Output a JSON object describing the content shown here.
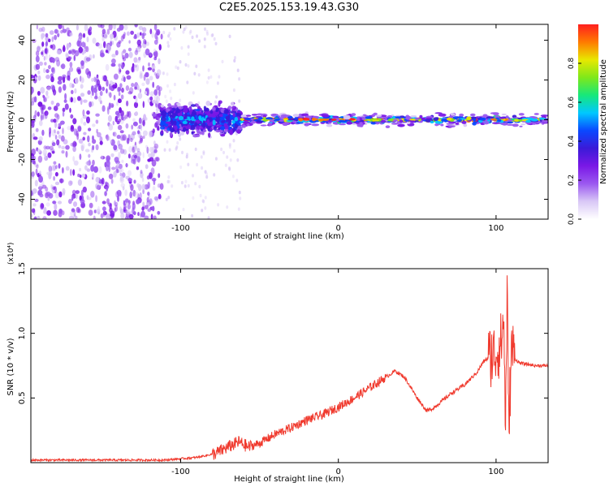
{
  "title": "C2E5.2025.153.19.43.G30",
  "colors": {
    "line": "#f03a2e",
    "colormap": [
      "#ffffff",
      "#d9c8f6",
      "#9b59f0",
      "#7a18e6",
      "#3b1ad8",
      "#0a48ff",
      "#00c8ff",
      "#17e87a",
      "#7fe81a",
      "#e8e800",
      "#ff7a00",
      "#ff1f1f"
    ]
  },
  "chart_data": [
    {
      "type": "heatmap",
      "title": "C2E5.2025.153.19.43.G30",
      "xlabel": "Height of straight line (km)",
      "ylabel": "Frequency (Hz)",
      "xlim": [
        -195,
        133
      ],
      "ylim": [
        -50,
        48
      ],
      "xticks": [
        -100,
        0,
        100
      ],
      "yticks": [
        -40,
        -20,
        0,
        20,
        40
      ],
      "colorbar": {
        "label": "Normalized spectral amplitude",
        "range": [
          0.0,
          1.0
        ],
        "ticks": [
          "0.0",
          "0.2",
          "0.4",
          "0.6",
          "0.8"
        ],
        "tick_values": [
          0.0,
          0.2,
          0.4,
          0.6,
          0.8
        ]
      },
      "description_regions": [
        {
          "x": [
            -195,
            -112
          ],
          "freq_spread": 48,
          "amplitude": 0.1
        },
        {
          "x": [
            -112,
            -62
          ],
          "freq_spread": 10,
          "amplitude": 0.3
        },
        {
          "x": [
            -62,
            133
          ],
          "freq_spread": 3,
          "amplitude": 0.85
        }
      ]
    },
    {
      "type": "line",
      "xlabel": "Height of straight line (km)",
      "ylabel": "SNR (10 * v/v)",
      "y_multiplier": "(x10⁴)",
      "xlim": [
        -195,
        133
      ],
      "ylim": [
        0,
        1.5
      ],
      "xticks": [
        -100,
        0,
        100
      ],
      "yticks": [
        "0.5",
        "1.0",
        "1.5"
      ],
      "ytick_values": [
        0.5,
        1.0,
        1.5
      ],
      "series": [
        {
          "x": [
            -195,
            -150,
            -110,
            -90,
            -78,
            -70,
            -63,
            -57,
            -50,
            -40,
            -30,
            -20,
            -10,
            0,
            10,
            20,
            30,
            36,
            42,
            50,
            56,
            60,
            66,
            72,
            80,
            88,
            92,
            97,
            100,
            103,
            105,
            106,
            107,
            108,
            110,
            112,
            115,
            120,
            125,
            133
          ],
          "y": [
            0.02,
            0.02,
            0.02,
            0.04,
            0.07,
            0.12,
            0.16,
            0.12,
            0.15,
            0.22,
            0.27,
            0.33,
            0.37,
            0.43,
            0.5,
            0.58,
            0.66,
            0.71,
            0.66,
            0.5,
            0.4,
            0.42,
            0.48,
            0.54,
            0.6,
            0.7,
            0.78,
            0.83,
            0.85,
            0.92,
            1.1,
            0.2,
            1.35,
            0.3,
            0.9,
            0.8,
            0.77,
            0.76,
            0.75,
            0.75
          ]
        }
      ]
    }
  ]
}
